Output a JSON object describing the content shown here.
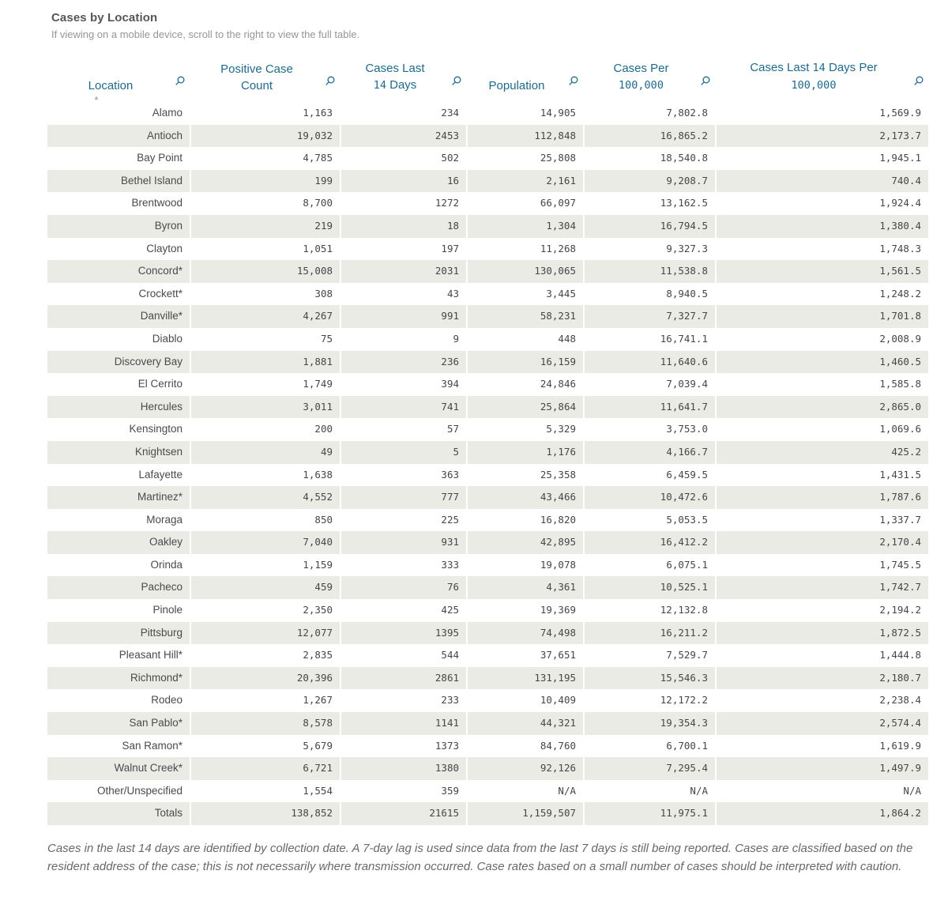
{
  "header": {
    "title": "Cases by Location",
    "subtitle": "If viewing on a mobile device, scroll to the right to view the full table."
  },
  "chart_data": {
    "type": "table",
    "title": "Cases by Location",
    "sorted_column": "Location",
    "sort_direction": "ascending",
    "columns": [
      "Location",
      "Positive Case Count",
      "Cases Last 14 Days",
      "Population",
      "Cases Per 100,000",
      "Cases Last 14 Days Per 100,000"
    ],
    "rows": [
      [
        "Alamo",
        "1,163",
        "234",
        "14,905",
        "7,802.8",
        "1,569.9"
      ],
      [
        "Antioch",
        "19,032",
        "2453",
        "112,848",
        "16,865.2",
        "2,173.7"
      ],
      [
        "Bay Point",
        "4,785",
        "502",
        "25,808",
        "18,540.8",
        "1,945.1"
      ],
      [
        "Bethel Island",
        "199",
        "16",
        "2,161",
        "9,208.7",
        "740.4"
      ],
      [
        "Brentwood",
        "8,700",
        "1272",
        "66,097",
        "13,162.5",
        "1,924.4"
      ],
      [
        "Byron",
        "219",
        "18",
        "1,304",
        "16,794.5",
        "1,380.4"
      ],
      [
        "Clayton",
        "1,051",
        "197",
        "11,268",
        "9,327.3",
        "1,748.3"
      ],
      [
        "Concord*",
        "15,008",
        "2031",
        "130,065",
        "11,538.8",
        "1,561.5"
      ],
      [
        "Crockett*",
        "308",
        "43",
        "3,445",
        "8,940.5",
        "1,248.2"
      ],
      [
        "Danville*",
        "4,267",
        "991",
        "58,231",
        "7,327.7",
        "1,701.8"
      ],
      [
        "Diablo",
        "75",
        "9",
        "448",
        "16,741.1",
        "2,008.9"
      ],
      [
        "Discovery Bay",
        "1,881",
        "236",
        "16,159",
        "11,640.6",
        "1,460.5"
      ],
      [
        "El Cerrito",
        "1,749",
        "394",
        "24,846",
        "7,039.4",
        "1,585.8"
      ],
      [
        "Hercules",
        "3,011",
        "741",
        "25,864",
        "11,641.7",
        "2,865.0"
      ],
      [
        "Kensington",
        "200",
        "57",
        "5,329",
        "3,753.0",
        "1,069.6"
      ],
      [
        "Knightsen",
        "49",
        "5",
        "1,176",
        "4,166.7",
        "425.2"
      ],
      [
        "Lafayette",
        "1,638",
        "363",
        "25,358",
        "6,459.5",
        "1,431.5"
      ],
      [
        "Martinez*",
        "4,552",
        "777",
        "43,466",
        "10,472.6",
        "1,787.6"
      ],
      [
        "Moraga",
        "850",
        "225",
        "16,820",
        "5,053.5",
        "1,337.7"
      ],
      [
        "Oakley",
        "7,040",
        "931",
        "42,895",
        "16,412.2",
        "2,170.4"
      ],
      [
        "Orinda",
        "1,159",
        "333",
        "19,078",
        "6,075.1",
        "1,745.5"
      ],
      [
        "Pacheco",
        "459",
        "76",
        "4,361",
        "10,525.1",
        "1,742.7"
      ],
      [
        "Pinole",
        "2,350",
        "425",
        "19,369",
        "12,132.8",
        "2,194.2"
      ],
      [
        "Pittsburg",
        "12,077",
        "1395",
        "74,498",
        "16,211.2",
        "1,872.5"
      ],
      [
        "Pleasant Hill*",
        "2,835",
        "544",
        "37,651",
        "7,529.7",
        "1,444.8"
      ],
      [
        "Richmond*",
        "20,396",
        "2861",
        "131,195",
        "15,546.3",
        "2,180.7"
      ],
      [
        "Rodeo",
        "1,267",
        "233",
        "10,409",
        "12,172.2",
        "2,238.4"
      ],
      [
        "San Pablo*",
        "8,578",
        "1141",
        "44,321",
        "19,354.3",
        "2,574.4"
      ],
      [
        "San Ramon*",
        "5,679",
        "1373",
        "84,760",
        "6,700.1",
        "1,619.9"
      ],
      [
        "Walnut Creek*",
        "6,721",
        "1380",
        "92,126",
        "7,295.4",
        "1,497.9"
      ],
      [
        "Other/Unspecified",
        "1,554",
        "359",
        "N/A",
        "N/A",
        "N/A"
      ],
      [
        "Totals",
        "138,852",
        "21615",
        "1,159,507",
        "11,975.1",
        "1,864.2"
      ]
    ]
  },
  "footnote": "Cases in the last 14 days are identified by collection date. A 7-day lag is used since data from the last 7 days is still being reported. Cases are classified based on the resident address of the case; this is not necessarily where transmission occurred. Case rates based on a small number of cases should be interpreted with caution.",
  "colors": {
    "header_text_blue": "#1e6a8c",
    "row_stripe_gray": "#ebebe6",
    "body_text_gray": "#4a4a4a",
    "title_gray": "#565656",
    "footnote_gray": "#686868"
  }
}
